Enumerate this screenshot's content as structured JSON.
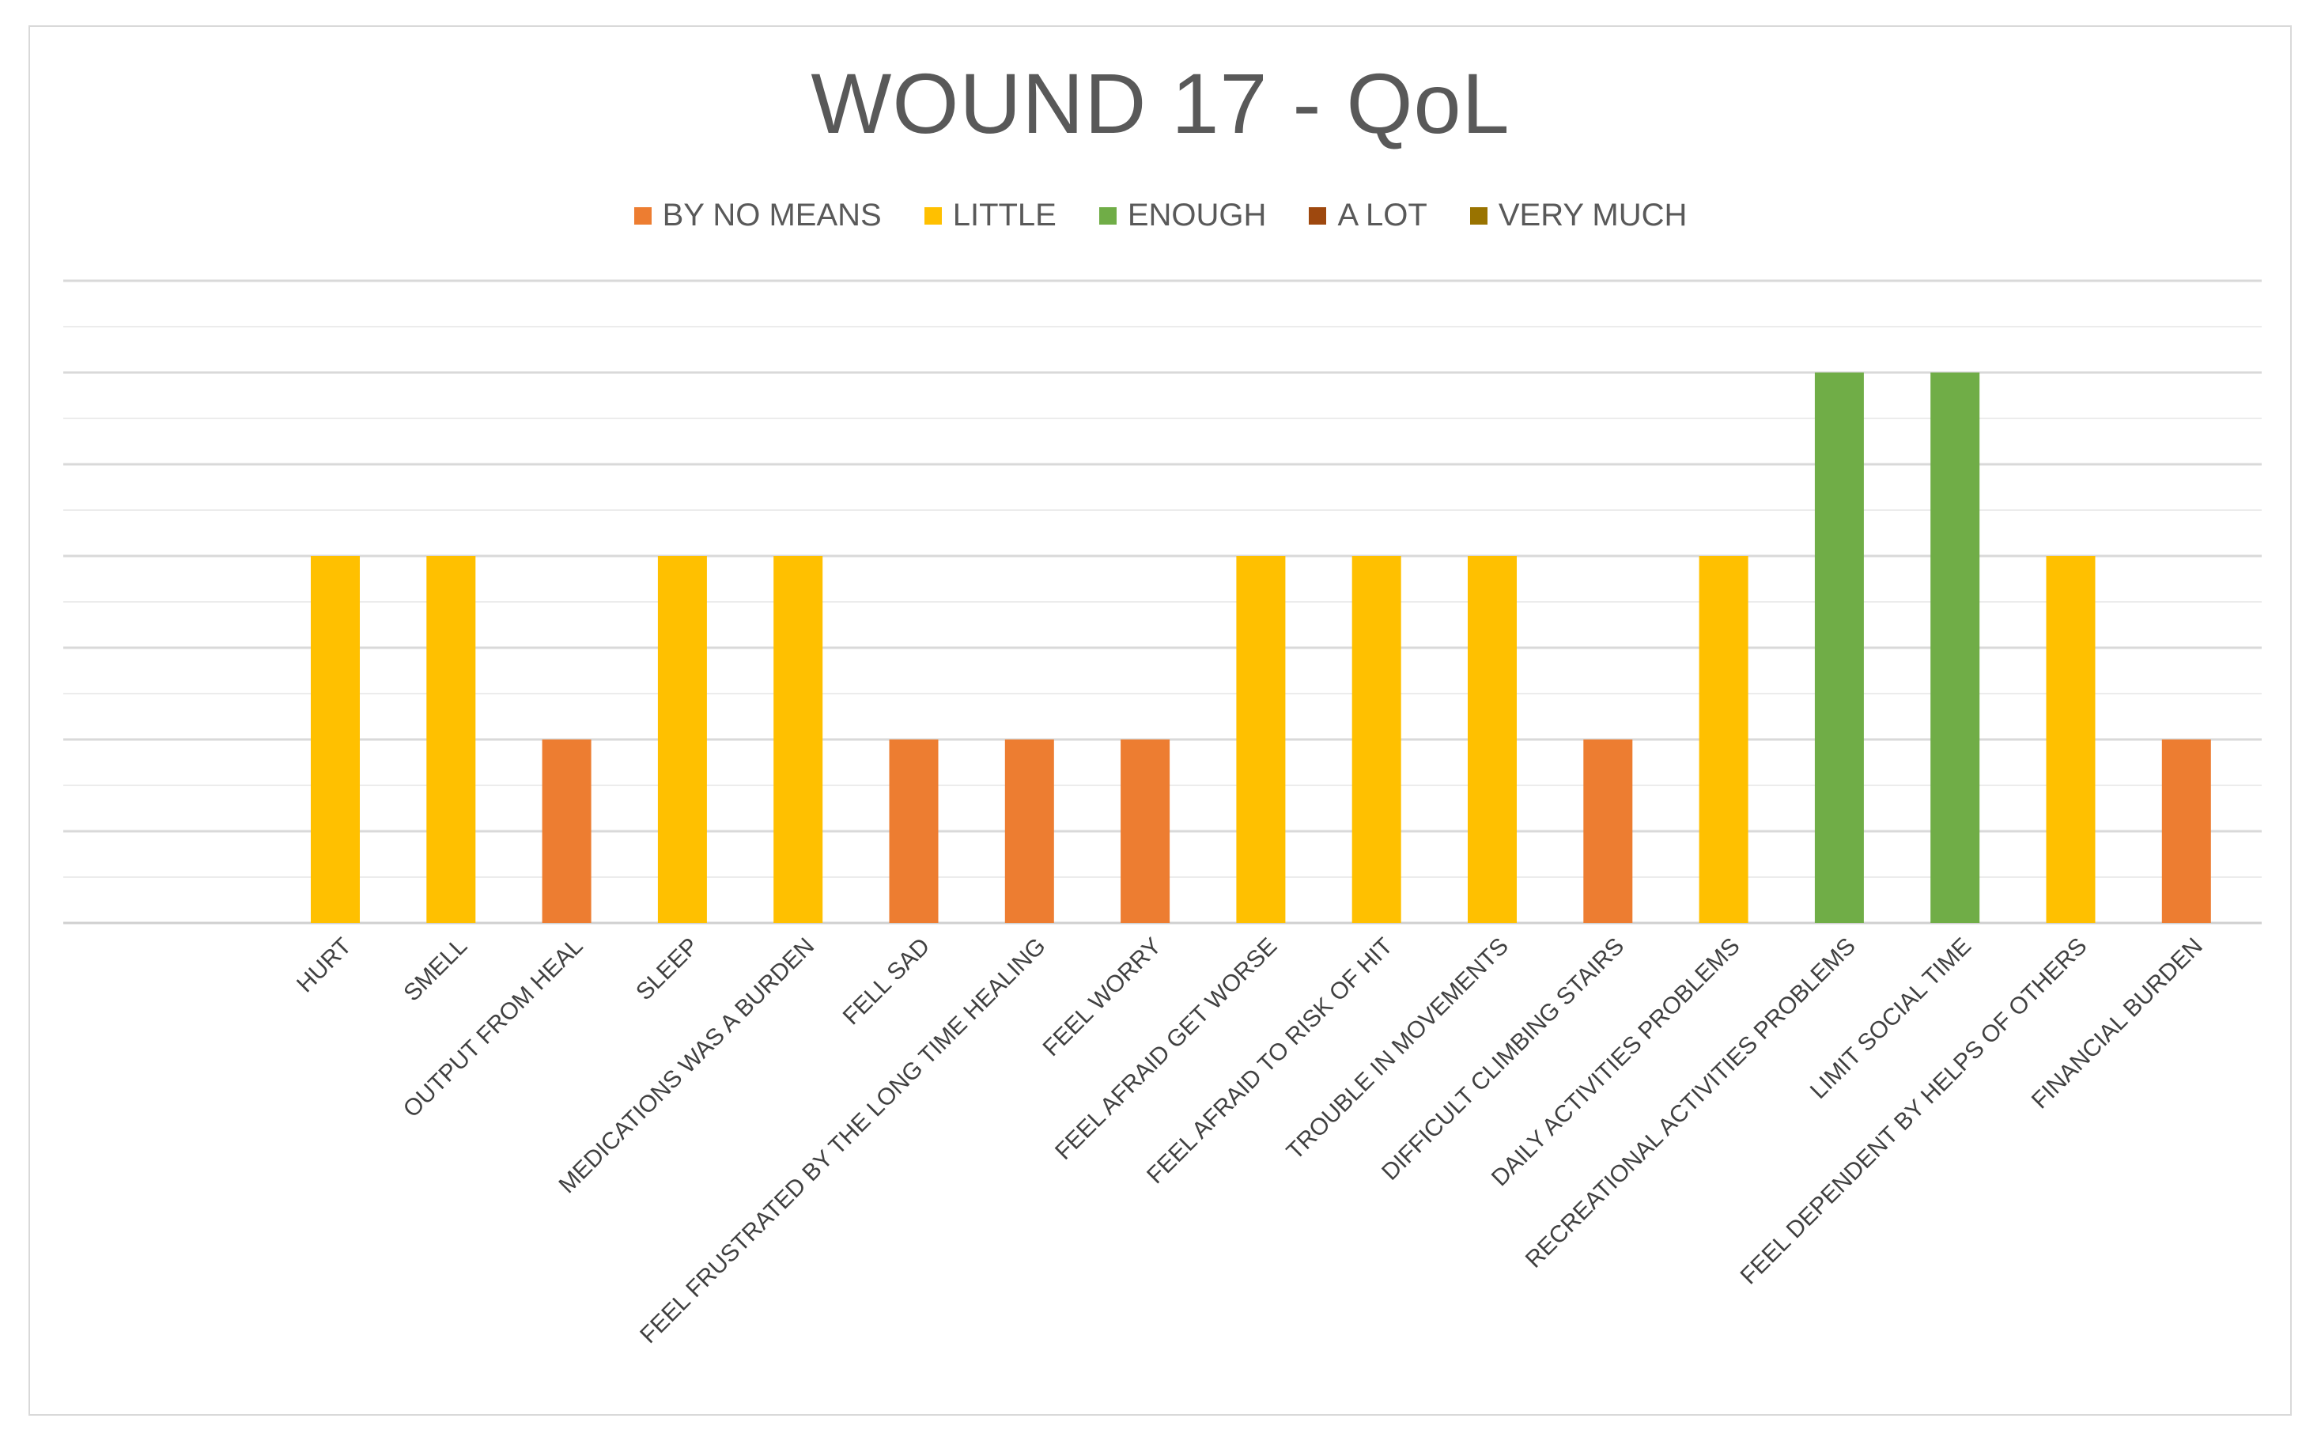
{
  "chart_data": {
    "type": "bar",
    "title": "WOUND 17 - QoL",
    "xlabel": "",
    "ylabel": "",
    "ylim": [
      0,
      3.5
    ],
    "grid": true,
    "legend_position": "top-center",
    "categories": [
      "HURT",
      "SMELL",
      "OUTPUT FROM HEAL",
      "SLEEP",
      "MEDICATIONS WAS A BURDEN",
      "FELL SAD",
      "FEEL FRUSTRATED BY THE LONG TIME HEALING",
      "FEEL WORRY",
      "FEEL AFRAID GET WORSE",
      "FEEL AFRAID TO RISK OF HIT",
      "TROUBLE IN MOVEMENTS",
      "DIFFICULT CLIMBING STAIRS",
      "DAILY ACTIVITIES PROBLEMS",
      "RECREATIONAL ACTIVITIES PROBLEMS",
      "LIMIT SOCIAL TIME",
      "FEEL DEPENDENT BY HELPS OF OTHERS",
      "FINANCIAL BURDEN"
    ],
    "series": [
      {
        "name": "BY NO MEANS",
        "color": "#ED7D31",
        "values": [
          null,
          null,
          1,
          null,
          null,
          1,
          1,
          1,
          null,
          null,
          null,
          1,
          null,
          null,
          null,
          null,
          1
        ]
      },
      {
        "name": "LITTLE",
        "color": "#FFC000",
        "values": [
          2,
          2,
          null,
          2,
          2,
          null,
          null,
          null,
          2,
          2,
          2,
          null,
          2,
          null,
          null,
          2,
          null
        ]
      },
      {
        "name": "ENOUGH",
        "color": "#70AD47",
        "values": [
          null,
          null,
          null,
          null,
          null,
          null,
          null,
          null,
          null,
          null,
          null,
          null,
          null,
          3,
          3,
          null,
          null
        ]
      },
      {
        "name": "A LOT",
        "color": "#9E480E",
        "values": [
          null,
          null,
          null,
          null,
          null,
          null,
          null,
          null,
          null,
          null,
          null,
          null,
          null,
          null,
          null,
          null,
          null
        ]
      },
      {
        "name": "VERY MUCH",
        "color": "#997300",
        "values": [
          null,
          null,
          null,
          null,
          null,
          null,
          null,
          null,
          null,
          null,
          null,
          null,
          null,
          null,
          null,
          null,
          null
        ]
      }
    ]
  }
}
